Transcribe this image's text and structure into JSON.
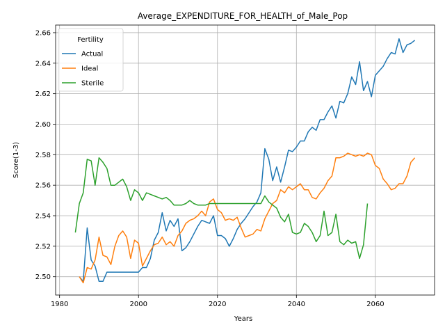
{
  "chart_data": {
    "type": "line",
    "title": "Average_EXPENDITURE_FOR_HEALTH_of_Male_Pop",
    "xlabel": "Years",
    "ylabel": "Score(1-3)",
    "xlim": [
      1979,
      2075
    ],
    "ylim": [
      2.488,
      2.665
    ],
    "xticks": [
      1980,
      2000,
      2020,
      2040,
      2060
    ],
    "yticks": [
      2.5,
      2.52,
      2.54,
      2.56,
      2.58,
      2.6,
      2.62,
      2.64,
      2.66
    ],
    "xtick_labels": [
      "1980",
      "2000",
      "2020",
      "2040",
      "2060"
    ],
    "ytick_labels": [
      "2.50",
      "2.52",
      "2.54",
      "2.56",
      "2.58",
      "2.60",
      "2.62",
      "2.64",
      "2.66"
    ],
    "grid": true,
    "legend": {
      "title": "Fertility",
      "position": "upper-left"
    },
    "series": [
      {
        "name": "Actual",
        "color": "#1f77b4",
        "x": [
          1985,
          1986,
          1987,
          1988,
          1989,
          1990,
          1991,
          1992,
          1993,
          1994,
          1995,
          1996,
          1997,
          1998,
          1999,
          2000,
          2001,
          2002,
          2003,
          2004,
          2005,
          2006,
          2007,
          2008,
          2009,
          2010,
          2011,
          2012,
          2013,
          2014,
          2015,
          2016,
          2017,
          2018,
          2019,
          2020,
          2021,
          2022,
          2023,
          2024,
          2025,
          2026,
          2027,
          2028,
          2029,
          2030,
          2031,
          2032,
          2033,
          2034,
          2035,
          2036,
          2037,
          2038,
          2039,
          2040,
          2041,
          2042,
          2043,
          2044,
          2045,
          2046,
          2047,
          2048,
          2049,
          2050,
          2051,
          2052,
          2053,
          2054,
          2055,
          2056,
          2057,
          2058,
          2059,
          2060,
          2061,
          2062,
          2063,
          2064,
          2065,
          2066,
          2067,
          2068,
          2069,
          2070
        ],
        "values": [
          2.5,
          2.497,
          2.532,
          2.511,
          2.507,
          2.497,
          2.497,
          2.503,
          2.503,
          2.503,
          2.503,
          2.503,
          2.503,
          2.503,
          2.503,
          2.503,
          2.506,
          2.506,
          2.512,
          2.524,
          2.529,
          2.542,
          2.53,
          2.537,
          2.533,
          2.538,
          2.517,
          2.519,
          2.523,
          2.528,
          2.533,
          2.537,
          2.536,
          2.535,
          2.54,
          2.527,
          2.527,
          2.525,
          2.52,
          2.525,
          2.531,
          2.535,
          2.538,
          2.542,
          2.546,
          2.549,
          2.555,
          2.584,
          2.577,
          2.563,
          2.572,
          2.562,
          2.572,
          2.583,
          2.582,
          2.585,
          2.589,
          2.589,
          2.595,
          2.598,
          2.596,
          2.603,
          2.603,
          2.608,
          2.612,
          2.604,
          2.615,
          2.614,
          2.62,
          2.631,
          2.626,
          2.641,
          2.622,
          2.628,
          2.618,
          2.632,
          2.635,
          2.638,
          2.643,
          2.647,
          2.646,
          2.656,
          2.647,
          2.652,
          2.653,
          2.655
        ]
      },
      {
        "name": "Ideal",
        "color": "#ff7f0e",
        "x": [
          1985,
          1986,
          1987,
          1988,
          1989,
          1990,
          1991,
          1992,
          1993,
          1994,
          1995,
          1996,
          1997,
          1998,
          1999,
          2000,
          2001,
          2002,
          2003,
          2004,
          2005,
          2006,
          2007,
          2008,
          2009,
          2010,
          2011,
          2012,
          2013,
          2014,
          2015,
          2016,
          2017,
          2018,
          2019,
          2020,
          2021,
          2022,
          2023,
          2024,
          2025,
          2026,
          2027,
          2028,
          2029,
          2030,
          2031,
          2032,
          2033,
          2034,
          2035,
          2036,
          2037,
          2038,
          2039,
          2040,
          2041,
          2042,
          2043,
          2044,
          2045,
          2046,
          2047,
          2048,
          2049,
          2050,
          2051,
          2052,
          2053,
          2054,
          2055,
          2056,
          2057,
          2058,
          2059,
          2060,
          2061,
          2062,
          2063,
          2064,
          2065,
          2066,
          2067,
          2068,
          2069,
          2070
        ],
        "values": [
          2.5,
          2.496,
          2.506,
          2.505,
          2.511,
          2.526,
          2.514,
          2.513,
          2.508,
          2.52,
          2.527,
          2.53,
          2.526,
          2.512,
          2.524,
          2.522,
          2.507,
          2.512,
          2.517,
          2.521,
          2.522,
          2.526,
          2.521,
          2.523,
          2.52,
          2.527,
          2.53,
          2.535,
          2.537,
          2.538,
          2.54,
          2.543,
          2.54,
          2.549,
          2.551,
          2.544,
          2.542,
          2.537,
          2.538,
          2.537,
          2.539,
          2.532,
          2.526,
          2.527,
          2.528,
          2.531,
          2.53,
          2.538,
          2.543,
          2.548,
          2.55,
          2.557,
          2.555,
          2.559,
          2.557,
          2.559,
          2.561,
          2.557,
          2.557,
          2.552,
          2.551,
          2.555,
          2.558,
          2.563,
          2.566,
          2.578,
          2.578,
          2.579,
          2.581,
          2.58,
          2.579,
          2.58,
          2.579,
          2.581,
          2.58,
          2.573,
          2.571,
          2.564,
          2.561,
          2.557,
          2.558,
          2.561,
          2.561,
          2.566,
          2.575,
          2.578
        ]
      },
      {
        "name": "Sterile",
        "color": "#2ca02c",
        "x": [
          1984,
          1985,
          1986,
          1987,
          1988,
          1989,
          1990,
          1991,
          1992,
          1993,
          1994,
          1995,
          1996,
          1997,
          1998,
          1999,
          2000,
          2001,
          2002,
          2003,
          2004,
          2005,
          2006,
          2007,
          2008,
          2009,
          2010,
          2011,
          2012,
          2013,
          2014,
          2015,
          2016,
          2017,
          2018,
          2019,
          2020,
          2021,
          2022,
          2023,
          2024,
          2025,
          2026,
          2027,
          2028,
          2029,
          2030,
          2031,
          2032,
          2033,
          2034,
          2035,
          2036,
          2037,
          2038,
          2039,
          2040,
          2041,
          2042,
          2043,
          2044,
          2045,
          2046,
          2047,
          2048,
          2049,
          2050,
          2051,
          2052,
          2053,
          2054,
          2055,
          2056,
          2057,
          2058
        ],
        "values": [
          2.529,
          2.548,
          2.555,
          2.577,
          2.576,
          2.56,
          2.578,
          2.575,
          2.571,
          2.56,
          2.56,
          2.562,
          2.564,
          2.559,
          2.55,
          2.557,
          2.555,
          2.55,
          2.555,
          2.554,
          2.553,
          2.552,
          2.551,
          2.552,
          2.55,
          2.547,
          2.547,
          2.547,
          2.548,
          2.55,
          2.548,
          2.547,
          2.547,
          2.547,
          2.548,
          2.548,
          2.548,
          2.548,
          2.548,
          2.548,
          2.548,
          2.548,
          2.548,
          2.548,
          2.548,
          2.548,
          2.548,
          2.548,
          2.553,
          2.549,
          2.547,
          2.545,
          2.539,
          2.536,
          2.541,
          2.529,
          2.528,
          2.529,
          2.535,
          2.533,
          2.529,
          2.523,
          2.527,
          2.543,
          2.527,
          2.529,
          2.541,
          2.523,
          2.521,
          2.524,
          2.522,
          2.523,
          2.512,
          2.521,
          2.548
        ]
      }
    ]
  }
}
